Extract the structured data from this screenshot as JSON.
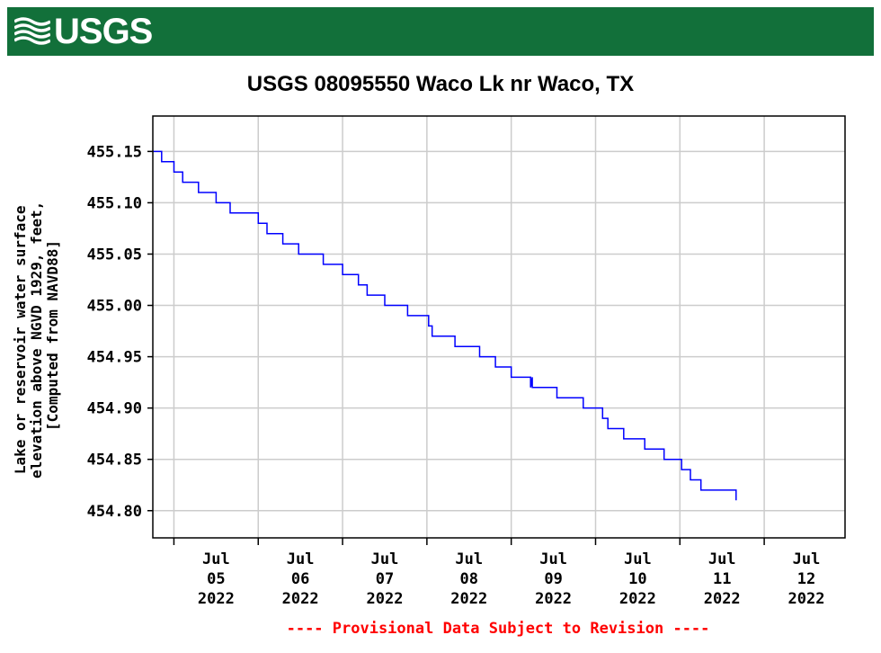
{
  "header": {
    "logo_text": "USGS",
    "background_color": "#12703a"
  },
  "chart_data": {
    "type": "line",
    "title": "USGS 08095550 Waco Lk nr Waco, TX",
    "ylabel_lines": [
      "Lake or reservoir water surface",
      "elevation above NGVD 1929, feet,",
      "[Computed from NAVD88]"
    ],
    "xlabel": "",
    "y_ticks": [
      "455.15",
      "455.10",
      "455.05",
      "455.00",
      "454.95",
      "454.90",
      "454.85",
      "454.80"
    ],
    "y_tick_values": [
      455.15,
      455.1,
      455.05,
      455.0,
      454.95,
      454.9,
      454.85,
      454.8
    ],
    "ylim": [
      454.7735,
      455.1845
    ],
    "x_ticks": [
      {
        "day": 0,
        "lines": [
          "Jul",
          "05",
          "2022"
        ]
      },
      {
        "day": 1,
        "lines": [
          "Jul",
          "06",
          "2022"
        ]
      },
      {
        "day": 2,
        "lines": [
          "Jul",
          "07",
          "2022"
        ]
      },
      {
        "day": 3,
        "lines": [
          "Jul",
          "08",
          "2022"
        ]
      },
      {
        "day": 4,
        "lines": [
          "Jul",
          "09",
          "2022"
        ]
      },
      {
        "day": 5,
        "lines": [
          "Jul",
          "10",
          "2022"
        ]
      },
      {
        "day": 6,
        "lines": [
          "Jul",
          "11",
          "2022"
        ]
      },
      {
        "day": 7,
        "lines": [
          "Jul",
          "12",
          "2022"
        ]
      }
    ],
    "xlim": [
      "2022-07-04 18:00",
      "2022-07-12 23:00"
    ],
    "grid": true,
    "line_color": "#0000ff",
    "series": [
      {
        "points": [
          [
            "2022-07-04 18:00",
            455.15
          ],
          [
            "2022-07-04 20:30",
            455.15
          ],
          [
            "2022-07-04 20:30",
            455.14
          ],
          [
            "2022-07-05 00:00",
            455.14
          ],
          [
            "2022-07-05 00:00",
            455.13
          ],
          [
            "2022-07-05 02:30",
            455.13
          ],
          [
            "2022-07-05 02:30",
            455.12
          ],
          [
            "2022-07-05 07:00",
            455.12
          ],
          [
            "2022-07-05 07:00",
            455.11
          ],
          [
            "2022-07-05 12:00",
            455.11
          ],
          [
            "2022-07-05 12:00",
            455.1
          ],
          [
            "2022-07-05 16:00",
            455.1
          ],
          [
            "2022-07-05 16:00",
            455.09
          ],
          [
            "2022-07-06 00:00",
            455.09
          ],
          [
            "2022-07-06 00:00",
            455.08
          ],
          [
            "2022-07-06 02:30",
            455.08
          ],
          [
            "2022-07-06 02:30",
            455.07
          ],
          [
            "2022-07-06 07:00",
            455.07
          ],
          [
            "2022-07-06 07:00",
            455.06
          ],
          [
            "2022-07-06 11:30",
            455.06
          ],
          [
            "2022-07-06 11:30",
            455.05
          ],
          [
            "2022-07-06 18:30",
            455.05
          ],
          [
            "2022-07-06 18:30",
            455.04
          ],
          [
            "2022-07-07 00:00",
            455.04
          ],
          [
            "2022-07-07 00:00",
            455.03
          ],
          [
            "2022-07-07 04:30",
            455.03
          ],
          [
            "2022-07-07 04:30",
            455.02
          ],
          [
            "2022-07-07 07:00",
            455.02
          ],
          [
            "2022-07-07 07:00",
            455.01
          ],
          [
            "2022-07-07 12:00",
            455.01
          ],
          [
            "2022-07-07 12:00",
            455.0
          ],
          [
            "2022-07-07 18:30",
            455.0
          ],
          [
            "2022-07-07 18:30",
            454.99
          ],
          [
            "2022-07-08 00:30",
            454.99
          ],
          [
            "2022-07-08 00:30",
            454.98
          ],
          [
            "2022-07-08 01:30",
            454.98
          ],
          [
            "2022-07-08 01:30",
            454.97
          ],
          [
            "2022-07-08 08:00",
            454.97
          ],
          [
            "2022-07-08 08:00",
            454.96
          ],
          [
            "2022-07-08 15:00",
            454.96
          ],
          [
            "2022-07-08 15:00",
            454.95
          ],
          [
            "2022-07-08 19:30",
            454.95
          ],
          [
            "2022-07-08 19:30",
            454.94
          ],
          [
            "2022-07-09 00:00",
            454.94
          ],
          [
            "2022-07-09 00:00",
            454.93
          ],
          [
            "2022-07-09 05:30",
            454.93
          ],
          [
            "2022-07-09 05:30",
            454.92
          ],
          [
            "2022-07-09 06:00",
            454.93
          ],
          [
            "2022-07-09 06:00",
            454.92
          ],
          [
            "2022-07-09 13:00",
            454.92
          ],
          [
            "2022-07-09 13:00",
            454.91
          ],
          [
            "2022-07-09 20:30",
            454.91
          ],
          [
            "2022-07-09 20:30",
            454.9
          ],
          [
            "2022-07-10 02:00",
            454.9
          ],
          [
            "2022-07-10 02:00",
            454.89
          ],
          [
            "2022-07-10 03:30",
            454.89
          ],
          [
            "2022-07-10 03:30",
            454.88
          ],
          [
            "2022-07-10 08:00",
            454.88
          ],
          [
            "2022-07-10 08:00",
            454.87
          ],
          [
            "2022-07-10 14:00",
            454.87
          ],
          [
            "2022-07-10 14:00",
            454.86
          ],
          [
            "2022-07-10 19:30",
            454.86
          ],
          [
            "2022-07-10 19:30",
            454.85
          ],
          [
            "2022-07-11 00:30",
            454.85
          ],
          [
            "2022-07-11 00:30",
            454.84
          ],
          [
            "2022-07-11 03:00",
            454.84
          ],
          [
            "2022-07-11 03:00",
            454.83
          ],
          [
            "2022-07-11 06:00",
            454.83
          ],
          [
            "2022-07-11 06:00",
            454.82
          ],
          [
            "2022-07-11 16:00",
            454.82
          ],
          [
            "2022-07-11 16:00",
            454.81
          ]
        ]
      }
    ]
  },
  "footer": {
    "provisional_note": "---- Provisional Data Subject to Revision ----",
    "note_color": "#ff0000"
  }
}
